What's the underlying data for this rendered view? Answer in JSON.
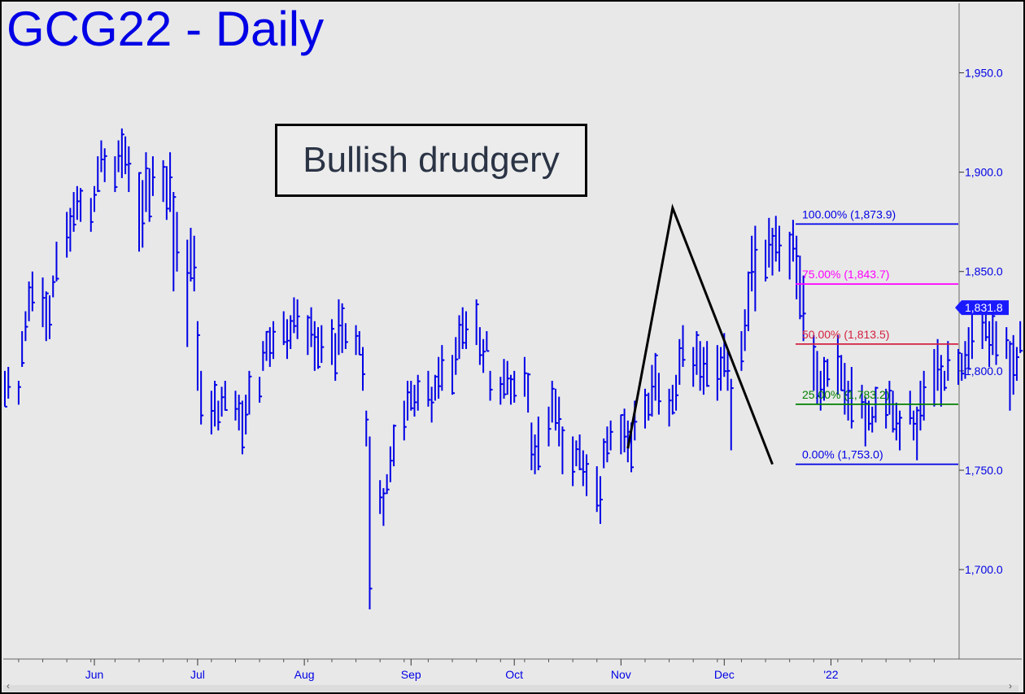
{
  "title": "GCG22 - Daily",
  "callout": "Bullish drudgery",
  "colors": {
    "bars": "#0000e6",
    "background": "#e8e8e8",
    "fib_100": "#0000e6",
    "fib_75": "#ff00ff",
    "fib_50": "#d42040",
    "fib_25": "#008000",
    "fib_0": "#0000e6",
    "abc_line": "#000000"
  },
  "chart_data": {
    "type": "bar",
    "subtype": "ohlc",
    "ylim": [
      1655,
      1985
    ],
    "y_ticks": [
      {
        "value": 1950,
        "label": "1,950.0"
      },
      {
        "value": 1900,
        "label": "1,900.0"
      },
      {
        "value": 1850,
        "label": "1,850.0"
      },
      {
        "value": 1800,
        "label": "1,800.0"
      },
      {
        "value": 1750,
        "label": "1,750.0"
      },
      {
        "value": 1700,
        "label": "1,700.0"
      }
    ],
    "x_ticks": [
      "Jun",
      "Jul",
      "Aug",
      "Sep",
      "Oct",
      "Nov",
      "Dec",
      "'22"
    ],
    "last_price": {
      "value": 1831.8,
      "label": "1,831.8"
    },
    "fib_levels": [
      {
        "pct": "100.00%",
        "value": 1873.9,
        "label": "100.00% (1,873.9)",
        "color_key": "fib_100"
      },
      {
        "pct": "75.00%",
        "value": 1843.7,
        "label": "75.00% (1,843.7)",
        "color_key": "fib_75"
      },
      {
        "pct": "50.00%",
        "value": 1813.5,
        "label": "50.00% (1,813.5)",
        "color_key": "fib_50"
      },
      {
        "pct": "25.00%",
        "value": 1783.2,
        "label": "25.00% (1,783.2)",
        "color_key": "fib_25"
      },
      {
        "pct": "0.00%",
        "value": 1753.0,
        "label": "0.00% (1,753.0)",
        "color_key": "fib_0"
      }
    ],
    "abc_pattern": [
      {
        "date": "2021-11-03",
        "value": 1761
      },
      {
        "date": "2021-11-16",
        "value": 1882
      },
      {
        "date": "2021-12-15",
        "value": 1753
      }
    ],
    "x_range": [
      "2021-05-06",
      "2022-02-07"
    ],
    "series": [
      {
        "start_date": "2021-05-06",
        "bars": [
          [
            1800,
            1782
          ],
          [
            1802,
            1786
          ],
          [
            1795,
            1783
          ],
          [
            1820,
            1802
          ],
          [
            1830,
            1815
          ],
          [
            1845,
            1825
          ],
          [
            1850,
            1830
          ],
          [
            1847,
            1822
          ],
          [
            1840,
            1815
          ],
          [
            1838,
            1816
          ],
          [
            1848,
            1837
          ],
          [
            1865,
            1845
          ],
          [
            1880,
            1857
          ],
          [
            1882,
            1860
          ],
          [
            1890,
            1870
          ],
          [
            1893,
            1876
          ],
          [
            1892,
            1875
          ],
          [
            1887,
            1870
          ],
          [
            1893,
            1880
          ],
          [
            1908,
            1890
          ],
          [
            1916,
            1900
          ],
          [
            1912,
            1895
          ],
          [
            1908,
            1890
          ],
          [
            1916,
            1900
          ],
          [
            1922,
            1897
          ],
          [
            1918,
            1899
          ],
          [
            1913,
            1890
          ],
          [
            1900,
            1860
          ],
          [
            1896,
            1862
          ],
          [
            1910,
            1880
          ],
          [
            1902,
            1875
          ],
          [
            1908,
            1888
          ],
          [
            1906,
            1885
          ],
          [
            1903,
            1876
          ],
          [
            1910,
            1880
          ],
          [
            1890,
            1840
          ],
          [
            1880,
            1850
          ],
          [
            1866,
            1812
          ],
          [
            1872,
            1845
          ],
          [
            1868,
            1840
          ],
          [
            1825,
            1790
          ],
          [
            1800,
            1773
          ],
          [
            1790,
            1768
          ],
          [
            1795,
            1772
          ],
          [
            1785,
            1770
          ],
          [
            1792,
            1777
          ],
          [
            1795,
            1780
          ],
          [
            1790,
            1775
          ],
          [
            1788,
            1770
          ],
          [
            1785,
            1758
          ],
          [
            1788,
            1768
          ],
          [
            1800,
            1778
          ],
          [
            1797,
            1784
          ],
          [
            1815,
            1800
          ],
          [
            1820,
            1805
          ],
          [
            1822,
            1802
          ],
          [
            1825,
            1806
          ],
          [
            1830,
            1813
          ],
          [
            1826,
            1806
          ],
          [
            1828,
            1811
          ],
          [
            1837,
            1819
          ],
          [
            1836,
            1816
          ],
          [
            1828,
            1808
          ],
          [
            1832,
            1812
          ],
          [
            1825,
            1800
          ],
          [
            1822,
            1801
          ],
          [
            1823,
            1804
          ],
          [
            1826,
            1803
          ],
          [
            1819,
            1795
          ],
          [
            1836,
            1808
          ],
          [
            1834,
            1809
          ],
          [
            1824,
            1811
          ],
          [
            1823,
            1808
          ],
          [
            1820,
            1808
          ],
          [
            1812,
            1790
          ],
          [
            1780,
            1762
          ],
          [
            1767,
            1680
          ],
          [
            1745,
            1728
          ],
          [
            1741,
            1722
          ],
          [
            1748,
            1738
          ],
          [
            1762,
            1744
          ],
          [
            1773,
            1752
          ],
          [
            1785,
            1765
          ],
          [
            1795,
            1775
          ],
          [
            1795,
            1780
          ],
          [
            1793,
            1777
          ],
          [
            1798,
            1780
          ],
          [
            1800,
            1782
          ],
          [
            1792,
            1774
          ],
          [
            1798,
            1785
          ],
          [
            1807,
            1786
          ],
          [
            1813,
            1790
          ],
          [
            1808,
            1788
          ],
          [
            1817,
            1798
          ],
          [
            1828,
            1806
          ],
          [
            1832,
            1811
          ],
          [
            1830,
            1811
          ],
          [
            1836,
            1813
          ],
          [
            1822,
            1803
          ],
          [
            1816,
            1799
          ],
          [
            1820,
            1810
          ],
          [
            1800,
            1785
          ],
          [
            1797,
            1783
          ],
          [
            1806,
            1786
          ],
          [
            1805,
            1788
          ],
          [
            1798,
            1783
          ],
          [
            1800,
            1784
          ],
          [
            1807,
            1787
          ],
          [
            1799,
            1779
          ],
          [
            1774,
            1750
          ],
          [
            1768,
            1748
          ],
          [
            1777,
            1750
          ],
          [
            1782,
            1762
          ],
          [
            1795,
            1774
          ],
          [
            1791,
            1770
          ],
          [
            1787,
            1762
          ],
          [
            1772,
            1748
          ],
          [
            1767,
            1742
          ],
          [
            1765,
            1752
          ],
          [
            1768,
            1750
          ],
          [
            1760,
            1742
          ],
          [
            1758,
            1737
          ],
          [
            1752,
            1729
          ],
          [
            1747,
            1723
          ],
          [
            1766,
            1751
          ],
          [
            1772,
            1754
          ],
          [
            1775,
            1760
          ],
          [
            1778,
            1758
          ],
          [
            1781,
            1759
          ],
          [
            1775,
            1754
          ],
          [
            1774,
            1749
          ],
          [
            1785,
            1765
          ],
          [
            1791,
            1771
          ],
          [
            1789,
            1775
          ],
          [
            1803,
            1777
          ],
          [
            1809,
            1785
          ],
          [
            1799,
            1778
          ],
          [
            1791,
            1772
          ],
          [
            1793,
            1778
          ],
          [
            1798,
            1780
          ],
          [
            1816,
            1793
          ],
          [
            1823,
            1802
          ],
          [
            1812,
            1792
          ],
          [
            1820,
            1798
          ],
          [
            1815,
            1790
          ],
          [
            1812,
            1788
          ],
          [
            1815,
            1792
          ],
          [
            1813,
            1785
          ],
          [
            1812,
            1790
          ],
          [
            1819,
            1797
          ],
          [
            1810,
            1790
          ],
          [
            1796,
            1760
          ],
          [
            1820,
            1800
          ],
          [
            1831,
            1810
          ],
          [
            1850,
            1820
          ],
          [
            1868,
            1840
          ],
          [
            1873,
            1830
          ],
          [
            1866,
            1845
          ],
          [
            1877,
            1852
          ],
          [
            1872,
            1848
          ],
          [
            1878,
            1855
          ],
          [
            1873,
            1850
          ],
          [
            1870,
            1846
          ],
          [
            1876,
            1855
          ],
          [
            1868,
            1836
          ],
          [
            1858,
            1826
          ],
          [
            1848,
            1815
          ],
          [
            1818,
            1790
          ],
          [
            1810,
            1783
          ],
          [
            1800,
            1780
          ],
          [
            1807,
            1785
          ],
          [
            1806,
            1792
          ],
          [
            1818,
            1788
          ],
          [
            1808,
            1790
          ],
          [
            1804,
            1778
          ],
          [
            1795,
            1775
          ],
          [
            1802,
            1771
          ],
          [
            1793,
            1776
          ],
          [
            1787,
            1762
          ],
          [
            1785,
            1770
          ],
          [
            1782,
            1769
          ],
          [
            1792,
            1774
          ],
          [
            1791,
            1771
          ],
          [
            1795,
            1778
          ],
          [
            1790,
            1769
          ],
          [
            1784,
            1765
          ],
          [
            1780,
            1760
          ],
          [
            1790,
            1773
          ],
          [
            1780,
            1765
          ],
          [
            1782,
            1755
          ],
          [
            1795,
            1770
          ],
          [
            1800,
            1775
          ],
          [
            1811,
            1782
          ],
          [
            1816,
            1790
          ],
          [
            1808,
            1782
          ],
          [
            1800,
            1790
          ],
          [
            1815,
            1795
          ],
          [
            1811,
            1793
          ],
          [
            1809,
            1795
          ],
          [
            1815,
            1796
          ],
          [
            1822,
            1801
          ],
          [
            1830,
            1806
          ],
          [
            1829,
            1811
          ],
          [
            1833,
            1815
          ],
          [
            1825,
            1802
          ],
          [
            1831,
            1808
          ],
          [
            1825,
            1803
          ],
          [
            1822,
            1806
          ],
          [
            1815,
            1780
          ],
          [
            1818,
            1788
          ],
          [
            1812,
            1795
          ],
          [
            1825,
            1809
          ],
          [
            1829,
            1809
          ],
          [
            1832,
            1813
          ],
          [
            1832,
            1816
          ],
          [
            1829,
            1811
          ],
          [
            1832,
            1803
          ],
          [
            1815,
            1807
          ],
          [
            1843,
            1821
          ],
          [
            1847,
            1835
          ],
          [
            1849,
            1837
          ],
          [
            1844,
            1827
          ]
        ]
      }
    ]
  }
}
